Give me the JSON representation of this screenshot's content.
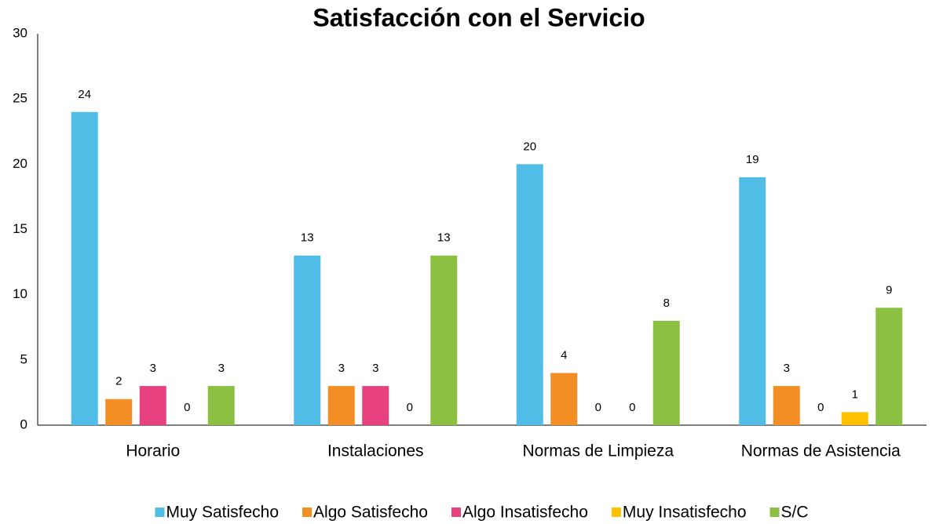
{
  "chart_data": {
    "type": "bar",
    "title": "Satisfacción con el Servicio",
    "categories": [
      "Horario",
      "Instalaciones",
      "Normas de Limpieza",
      "Normas de Asistencia"
    ],
    "series": [
      {
        "name": "Muy Satisfecho",
        "color": "#4fbde6",
        "values": [
          24,
          13,
          20,
          19
        ]
      },
      {
        "name": "Algo Satisfecho",
        "color": "#f28e23",
        "values": [
          2,
          3,
          4,
          3
        ]
      },
      {
        "name": "Algo Insatisfecho",
        "color": "#e8417f",
        "values": [
          3,
          3,
          0,
          0
        ]
      },
      {
        "name": "Muy Insatisfecho",
        "color": "#ffc000",
        "values": [
          0,
          0,
          0,
          1
        ]
      },
      {
        "name": "S/C",
        "color": "#8bc043",
        "values": [
          3,
          13,
          8,
          9
        ]
      }
    ],
    "ylim": [
      0,
      30
    ],
    "yticks": [
      0,
      5,
      10,
      15,
      20,
      25,
      30
    ],
    "grid": false,
    "legend": "bottom"
  }
}
